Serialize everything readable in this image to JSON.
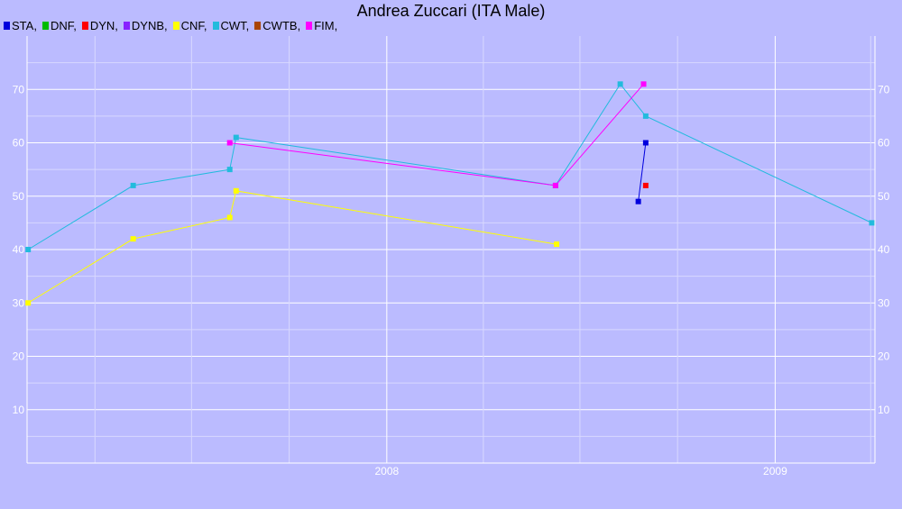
{
  "chart_data": {
    "type": "line",
    "title": "Andrea Zuccari (ITA Male)",
    "xlabel": "",
    "ylabel": "",
    "x_axis": "date",
    "xlim": [
      "2007-01-27",
      "2009-04-05"
    ],
    "ylim": [
      0,
      80
    ],
    "y_ticks": [
      10,
      20,
      30,
      40,
      50,
      60,
      70
    ],
    "x_tick_labels": [
      "2008",
      "2009"
    ],
    "grid": true,
    "legend_position": "top-left",
    "legend": [
      {
        "label": "STA,",
        "color": "#0000dd"
      },
      {
        "label": "DNF,",
        "color": "#00bb00"
      },
      {
        "label": "DYN,",
        "color": "#ff0000"
      },
      {
        "label": "DYNB,",
        "color": "#8822ff"
      },
      {
        "label": "CNF,",
        "color": "#ffff00"
      },
      {
        "label": "CWT,",
        "color": "#22bbdd"
      },
      {
        "label": "CWTB,",
        "color": "#aa4400"
      },
      {
        "label": "FIM,",
        "color": "#ff00ff"
      }
    ],
    "series": [
      {
        "key": "STA",
        "color": "#0000dd",
        "points": [
          {
            "x": "2008-08-25",
            "y": 49
          },
          {
            "x": "2008-09-01",
            "y": 60
          }
        ]
      },
      {
        "key": "DYN",
        "color": "#ff0000",
        "points": [
          {
            "x": "2008-09-01",
            "y": 52
          }
        ]
      },
      {
        "key": "CNF",
        "color": "#ffff00",
        "points": [
          {
            "x": "2007-01-28",
            "y": 30
          },
          {
            "x": "2007-05-07",
            "y": 42
          },
          {
            "x": "2007-08-06",
            "y": 46
          },
          {
            "x": "2007-08-12",
            "y": 51
          },
          {
            "x": "2008-06-09",
            "y": 41
          }
        ]
      },
      {
        "key": "CWT",
        "color": "#22bbdd",
        "points": [
          {
            "x": "2007-01-28",
            "y": 40
          },
          {
            "x": "2007-05-07",
            "y": 52
          },
          {
            "x": "2007-08-06",
            "y": 55
          },
          {
            "x": "2007-08-12",
            "y": 61
          },
          {
            "x": "2008-06-08",
            "y": 52
          },
          {
            "x": "2008-08-08",
            "y": 71
          },
          {
            "x": "2008-09-01",
            "y": 65
          },
          {
            "x": "2009-04-02",
            "y": 45
          }
        ]
      },
      {
        "key": "FIM",
        "color": "#ff00ff",
        "points": [
          {
            "x": "2007-08-06",
            "y": 60
          },
          {
            "x": "2008-06-08",
            "y": 52
          },
          {
            "x": "2008-08-30",
            "y": 71
          }
        ]
      }
    ]
  }
}
